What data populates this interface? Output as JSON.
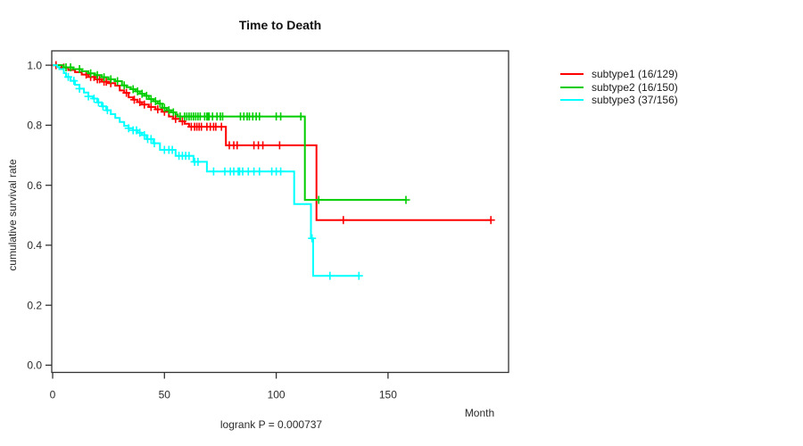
{
  "chart_data": {
    "type": "line",
    "subtype": "kaplan-meier-step-survival",
    "title": "Time to Death",
    "xlabel": "Month",
    "ylabel": "cumulative survival rate",
    "footnote": "logrank P = 0.000737",
    "grid": false,
    "legend_position": "right-outside",
    "axis_color": "#333333",
    "text_color": "#2b2b2b",
    "xlim": [
      -0.4,
      203.9
    ],
    "ylim": [
      -0.024,
      1.048
    ],
    "xticks": [
      0,
      50,
      100,
      150
    ],
    "xtick_labels": [
      "0",
      "50",
      "100",
      "150"
    ],
    "yticks": [
      0.0,
      0.2,
      0.4,
      0.6,
      0.8,
      1.0
    ],
    "ytick_labels": [
      "0.0",
      "0.2",
      "0.4",
      "0.6",
      "0.8",
      "1.0"
    ],
    "series": [
      {
        "name": "subtype1",
        "label": "subtype1 (16/129)",
        "color": "#ff0000",
        "events": 16,
        "n": 129,
        "steps": [
          [
            0,
            1.0
          ],
          [
            4,
            0.992
          ],
          [
            7,
            0.984
          ],
          [
            10,
            0.977
          ],
          [
            13,
            0.969
          ],
          [
            16,
            0.961
          ],
          [
            19,
            0.953
          ],
          [
            22,
            0.945
          ],
          [
            25,
            0.94
          ],
          [
            28,
            0.932
          ],
          [
            30,
            0.916
          ],
          [
            32,
            0.908
          ],
          [
            34,
            0.893
          ],
          [
            36,
            0.885
          ],
          [
            38,
            0.877
          ],
          [
            40,
            0.869
          ],
          [
            43,
            0.861
          ],
          [
            46,
            0.853
          ],
          [
            49,
            0.845
          ],
          [
            52,
            0.829
          ],
          [
            54,
            0.821
          ],
          [
            57,
            0.813
          ],
          [
            59,
            0.805
          ],
          [
            61,
            0.795
          ],
          [
            77.5,
            0.733
          ],
          [
            118,
            0.484
          ]
        ],
        "end": 196,
        "censor_months": [
          1.5,
          5,
          15,
          17,
          18.5,
          20,
          21,
          23,
          24,
          26,
          33,
          36.5,
          39,
          41,
          44,
          47,
          50,
          55,
          58,
          62,
          63.5,
          64.5,
          65.5,
          66.5,
          69,
          70.5,
          72,
          73,
          75.5,
          79,
          81,
          82.5,
          90,
          92,
          94,
          101.5,
          130,
          196
        ]
      },
      {
        "name": "subtype2",
        "label": "subtype2 (16/150)",
        "color": "#00cd00",
        "events": 16,
        "n": 150,
        "steps": [
          [
            0,
            1.0
          ],
          [
            5,
            0.993
          ],
          [
            9,
            0.987
          ],
          [
            13,
            0.98
          ],
          [
            16,
            0.973
          ],
          [
            19,
            0.967
          ],
          [
            22,
            0.96
          ],
          [
            25,
            0.953
          ],
          [
            28,
            0.947
          ],
          [
            31,
            0.933
          ],
          [
            33,
            0.927
          ],
          [
            35,
            0.92
          ],
          [
            37,
            0.913
          ],
          [
            39,
            0.905
          ],
          [
            41,
            0.898
          ],
          [
            43,
            0.887
          ],
          [
            45,
            0.88
          ],
          [
            47,
            0.872
          ],
          [
            49,
            0.858
          ],
          [
            51,
            0.85
          ],
          [
            53,
            0.843
          ],
          [
            55,
            0.836
          ],
          [
            56,
            0.829
          ],
          [
            112.8,
            0.551
          ]
        ],
        "end": 158,
        "censor_months": [
          6,
          8,
          12,
          17,
          20,
          23,
          26,
          29,
          32,
          36,
          38,
          40,
          42,
          44,
          46,
          48,
          50,
          52,
          54,
          57,
          59,
          60,
          61,
          62,
          63,
          64,
          65,
          66,
          68,
          69,
          69.5,
          70,
          71.5,
          73.5,
          75,
          76,
          84,
          85.5,
          87,
          88,
          89.5,
          91,
          92.5,
          100,
          102,
          111,
          119,
          158
        ]
      },
      {
        "name": "subtype3",
        "label": "subtype3 (37/156)",
        "color": "#00ffff",
        "events": 37,
        "n": 156,
        "steps": [
          [
            0,
            1.0
          ],
          [
            2,
            0.994
          ],
          [
            3,
            0.987
          ],
          [
            5,
            0.974
          ],
          [
            6,
            0.961
          ],
          [
            8,
            0.948
          ],
          [
            10,
            0.935
          ],
          [
            12,
            0.922
          ],
          [
            14,
            0.909
          ],
          [
            16,
            0.896
          ],
          [
            18,
            0.889
          ],
          [
            20,
            0.876
          ],
          [
            22,
            0.863
          ],
          [
            24,
            0.85
          ],
          [
            26,
            0.837
          ],
          [
            28,
            0.824
          ],
          [
            30,
            0.811
          ],
          [
            32,
            0.798
          ],
          [
            34,
            0.79
          ],
          [
            36,
            0.783
          ],
          [
            38,
            0.775
          ],
          [
            40,
            0.767
          ],
          [
            42,
            0.754
          ],
          [
            45,
            0.74
          ],
          [
            48,
            0.718
          ],
          [
            55,
            0.698
          ],
          [
            63,
            0.678
          ],
          [
            69,
            0.646
          ],
          [
            108,
            0.537
          ],
          [
            115.5,
            0.423
          ],
          [
            116.5,
            0.298
          ]
        ],
        "end": 137,
        "censor_months": [
          7,
          9.5,
          12,
          16,
          18.5,
          20.5,
          22.5,
          24.5,
          34,
          36,
          37.5,
          39,
          41,
          42.5,
          44,
          45.5,
          50,
          52,
          53.5,
          56.5,
          58,
          59.5,
          61,
          63.5,
          65,
          72,
          77,
          79.5,
          81,
          83,
          83.6,
          85,
          87.5,
          90,
          92.5,
          98,
          100,
          102,
          116,
          124,
          137
        ]
      }
    ]
  }
}
